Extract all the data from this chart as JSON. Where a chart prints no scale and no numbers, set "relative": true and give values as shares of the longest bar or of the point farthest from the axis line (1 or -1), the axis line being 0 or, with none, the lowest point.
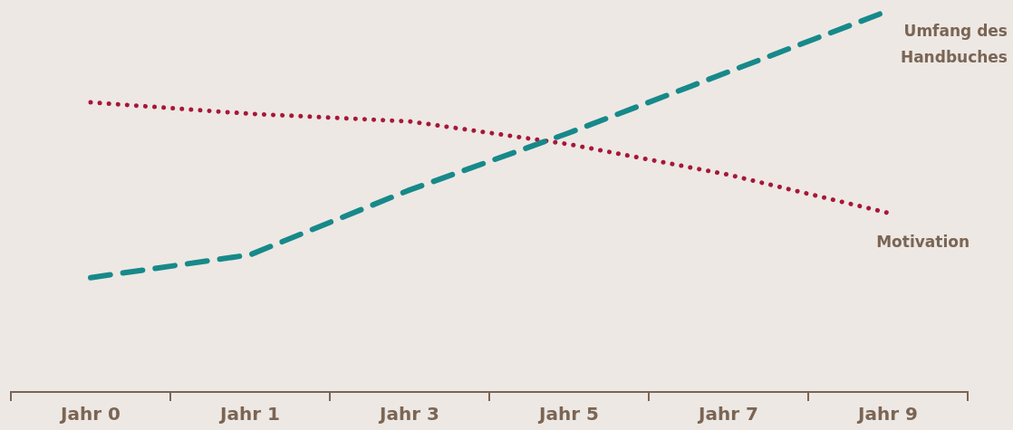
{
  "chart_data": {
    "type": "line",
    "relative": true,
    "categories": [
      "Jahr 0",
      "Jahr 1",
      "Jahr 3",
      "Jahr 5",
      "Jahr 7",
      "Jahr 9"
    ],
    "series": [
      {
        "name": "Umfang des Handbuches",
        "color": "#17898a",
        "line_style": "dashed",
        "values": [
          0.3,
          0.36,
          0.53,
          0.68,
          0.84,
          1.0
        ]
      },
      {
        "name": "Motivation",
        "color": "#a8163a",
        "line_style": "dotted",
        "values": [
          0.76,
          0.73,
          0.71,
          0.65,
          0.57,
          0.47
        ]
      }
    ],
    "grid": false,
    "legend": false,
    "marker": "none"
  }
}
